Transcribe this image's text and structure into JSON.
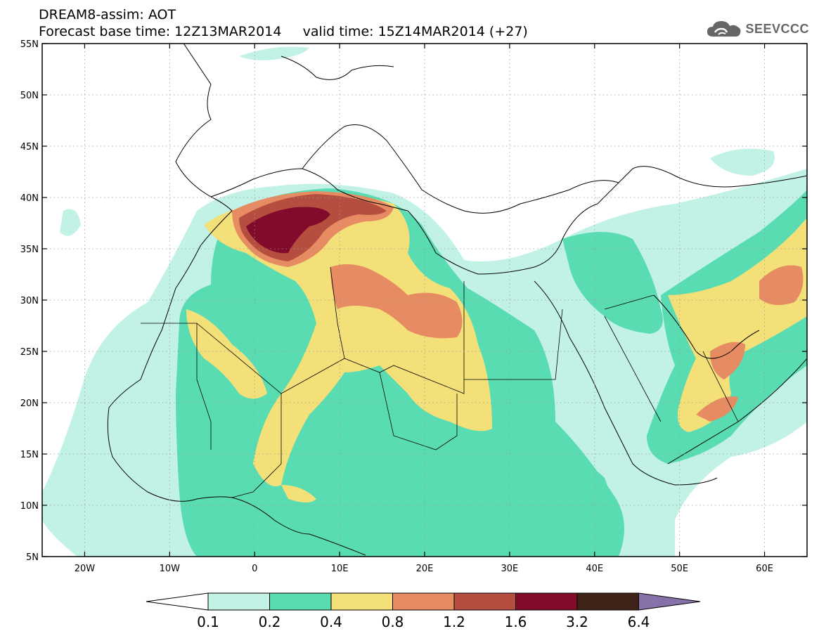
{
  "title": {
    "line1": "DREAM8-assim: AOT",
    "line2_base_label": "Forecast base time: 12Z13MAR2014",
    "line2_valid_label": "valid time: 15Z14MAR2014 (+27)"
  },
  "logo": {
    "text": "SEEVCCC",
    "icon": "cloud-icon"
  },
  "map": {
    "lon_range": [
      -25,
      65
    ],
    "lat_range": [
      5,
      55
    ],
    "lat_ticks": [
      {
        "v": 55,
        "label": "55N"
      },
      {
        "v": 50,
        "label": "50N"
      },
      {
        "v": 45,
        "label": "45N"
      },
      {
        "v": 40,
        "label": "40N"
      },
      {
        "v": 35,
        "label": "35N"
      },
      {
        "v": 30,
        "label": "30N"
      },
      {
        "v": 25,
        "label": "25N"
      },
      {
        "v": 20,
        "label": "20N"
      },
      {
        "v": 15,
        "label": "15N"
      },
      {
        "v": 10,
        "label": "10N"
      },
      {
        "v": 5,
        "label": "5N"
      }
    ],
    "lon_ticks": [
      {
        "v": -20,
        "label": "20W"
      },
      {
        "v": -10,
        "label": "10W"
      },
      {
        "v": 0,
        "label": "0"
      },
      {
        "v": 10,
        "label": "10E"
      },
      {
        "v": 20,
        "label": "20E"
      },
      {
        "v": 30,
        "label": "30E"
      },
      {
        "v": 40,
        "label": "40E"
      },
      {
        "v": 50,
        "label": "50E"
      },
      {
        "v": 60,
        "label": "60E"
      }
    ]
  },
  "legend": {
    "labels": [
      "0.1",
      "0.2",
      "0.4",
      "0.8",
      "1.2",
      "1.6",
      "3.2",
      "6.4"
    ],
    "colors": [
      "#c2f2e6",
      "#5adcb2",
      "#f4e079",
      "#e68b62",
      "#b64e3f",
      "#820a2a",
      "#3f2318",
      "#8870a8"
    ],
    "under_color": "#ffffff"
  }
}
